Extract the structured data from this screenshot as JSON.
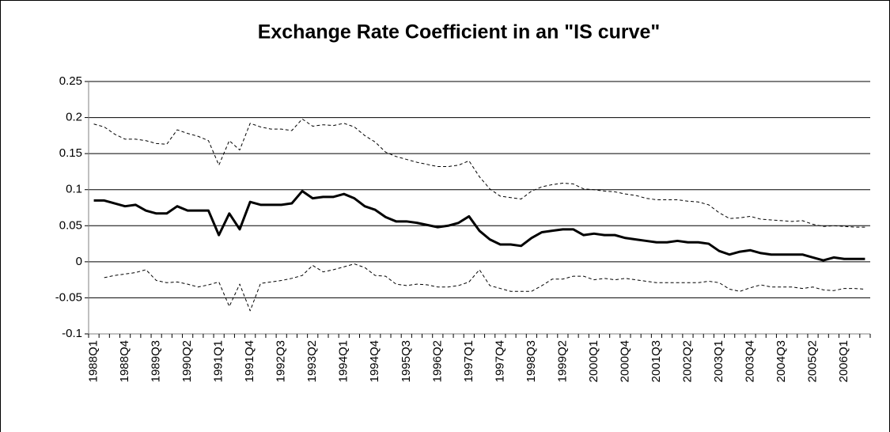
{
  "chart_data": {
    "type": "line",
    "title": "Exchange Rate Coefficient in an \"IS curve\"",
    "categories": [
      "1988Q1",
      null,
      null,
      "1988Q4",
      null,
      null,
      "1989Q3",
      null,
      null,
      "1990Q2",
      null,
      null,
      "1991Q1",
      null,
      null,
      "1991Q4",
      null,
      null,
      "1992Q3",
      null,
      null,
      "1993Q2",
      null,
      null,
      "1994Q1",
      null,
      null,
      "1994Q4",
      null,
      null,
      "1995Q3",
      null,
      null,
      "1996Q2",
      null,
      null,
      "1997Q1",
      null,
      null,
      "1997Q4",
      null,
      null,
      "1998Q3",
      null,
      null,
      "1999Q2",
      null,
      null,
      "2000Q1",
      null,
      null,
      "2000Q4",
      null,
      null,
      "2001Q3",
      null,
      null,
      "2002Q2",
      null,
      null,
      "2003Q1",
      null,
      null,
      "2003Q4",
      null,
      null,
      "2004Q3",
      null,
      null,
      "2005Q2",
      null,
      null,
      "2006Q1",
      null,
      null
    ],
    "series": [
      {
        "color": "#000000",
        "dashed": false,
        "width": 3,
        "values": [
          0.085,
          0.085,
          0.081,
          0.077,
          0.079,
          0.071,
          0.067,
          0.067,
          0.077,
          0.071,
          0.071,
          0.071,
          0.037,
          0.067,
          0.045,
          0.083,
          0.079,
          0.079,
          0.079,
          0.081,
          0.098,
          0.088,
          0.09,
          0.09,
          0.094,
          0.088,
          0.077,
          0.072,
          0.062,
          0.056,
          0.056,
          0.054,
          0.051,
          0.048,
          0.05,
          0.054,
          0.063,
          0.043,
          0.031,
          0.024,
          0.024,
          0.022,
          0.033,
          0.041,
          0.043,
          0.045,
          0.045,
          0.037,
          0.039,
          0.037,
          0.037,
          0.033,
          0.031,
          0.029,
          0.027,
          0.027,
          0.029,
          0.027,
          0.027,
          0.025,
          0.015,
          0.01,
          0.014,
          0.016,
          0.012,
          0.01,
          0.01,
          0.01,
          0.01,
          0.006,
          0.002,
          0.006,
          0.004,
          0.004,
          0.004
        ]
      },
      {
        "color": "#000000",
        "dashed": true,
        "width": 1,
        "values": [
          0.191,
          0.187,
          0.177,
          0.17,
          0.17,
          0.168,
          0.164,
          0.163,
          0.183,
          0.178,
          0.174,
          0.168,
          0.134,
          0.168,
          0.155,
          0.192,
          0.187,
          0.184,
          0.184,
          0.182,
          0.198,
          0.188,
          0.19,
          0.189,
          0.192,
          0.187,
          0.175,
          0.166,
          0.152,
          0.146,
          0.142,
          0.138,
          0.135,
          0.132,
          0.132,
          0.134,
          0.14,
          0.118,
          0.101,
          0.091,
          0.089,
          0.087,
          0.098,
          0.104,
          0.107,
          0.109,
          0.108,
          0.101,
          0.1,
          0.098,
          0.097,
          0.094,
          0.092,
          0.088,
          0.086,
          0.086,
          0.086,
          0.084,
          0.083,
          0.079,
          0.068,
          0.06,
          0.061,
          0.063,
          0.059,
          0.058,
          0.057,
          0.056,
          0.057,
          0.052,
          0.049,
          0.05,
          0.049,
          0.048,
          0.048
        ]
      },
      {
        "color": "#000000",
        "dashed": true,
        "width": 1,
        "values": [
          null,
          -0.022,
          -0.019,
          -0.017,
          -0.015,
          -0.011,
          -0.026,
          -0.029,
          -0.028,
          -0.031,
          -0.035,
          -0.032,
          -0.028,
          -0.062,
          -0.031,
          -0.068,
          -0.03,
          -0.028,
          -0.026,
          -0.023,
          -0.019,
          -0.005,
          -0.014,
          -0.011,
          -0.007,
          -0.003,
          -0.008,
          -0.019,
          -0.02,
          -0.031,
          -0.033,
          -0.031,
          -0.032,
          -0.035,
          -0.035,
          -0.033,
          -0.028,
          -0.011,
          -0.033,
          -0.037,
          -0.041,
          -0.041,
          -0.041,
          -0.033,
          -0.024,
          -0.024,
          -0.02,
          -0.02,
          -0.025,
          -0.023,
          -0.025,
          -0.023,
          -0.025,
          -0.027,
          -0.029,
          -0.029,
          -0.029,
          -0.029,
          -0.029,
          -0.027,
          -0.029,
          -0.038,
          -0.041,
          -0.036,
          -0.032,
          -0.035,
          -0.035,
          -0.035,
          -0.037,
          -0.035,
          -0.039,
          -0.04,
          -0.037,
          -0.037,
          -0.038
        ]
      }
    ],
    "ylim": [
      -0.1,
      0.25
    ],
    "yticks": [
      -0.1,
      -0.05,
      0,
      0.05,
      0.1,
      0.15,
      0.2,
      0.25
    ],
    "grid": true
  }
}
